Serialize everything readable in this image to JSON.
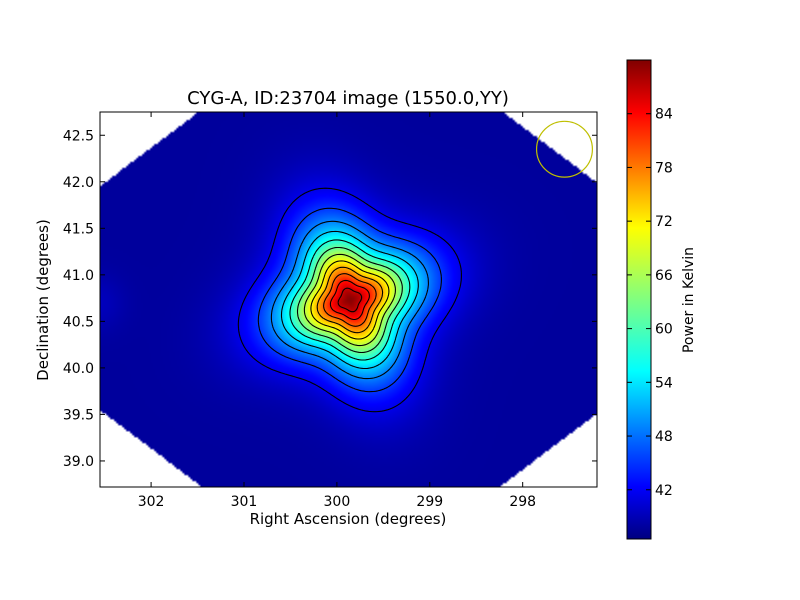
{
  "chart_data": {
    "type": "heatmap",
    "title": "CYG-A, ID:23704 image (1550.0,YY)",
    "xlabel": "Right Ascension (degrees)",
    "ylabel": "Declination (degrees)",
    "x_axis_inverted": true,
    "xlim": [
      302.55,
      297.2
    ],
    "ylim": [
      38.72,
      42.75
    ],
    "x_ticks": [
      302,
      301,
      300,
      299,
      298
    ],
    "y_ticks": [
      39.0,
      39.5,
      40.0,
      40.5,
      41.0,
      41.5,
      42.0,
      42.5
    ],
    "x_tick_labels": [
      "302",
      "301",
      "300",
      "299",
      "298"
    ],
    "y_tick_labels": [
      "39.0",
      "39.5",
      "40.0",
      "40.5",
      "41.0",
      "41.5",
      "42.0",
      "42.5"
    ],
    "colormap": "jet",
    "colorbar": {
      "label": "Power in Kelvin",
      "range": [
        36.5,
        90
      ],
      "ticks": [
        42,
        48,
        54,
        60,
        66,
        72,
        78,
        84
      ],
      "tick_labels": [
        "42",
        "48",
        "54",
        "60",
        "66",
        "72",
        "78",
        "84"
      ]
    },
    "peak": {
      "ra": 299.86,
      "dec": 40.73,
      "value": 89.5
    },
    "background_value": 38,
    "contour_levels": [
      42,
      46,
      50,
      54,
      58,
      62,
      66,
      70,
      74,
      78,
      82,
      86
    ],
    "contour_color": "#000000",
    "beam_marker": {
      "ra": 297.55,
      "dec": 42.35,
      "radius_deg": 0.3,
      "color": "#bfbf00"
    }
  }
}
